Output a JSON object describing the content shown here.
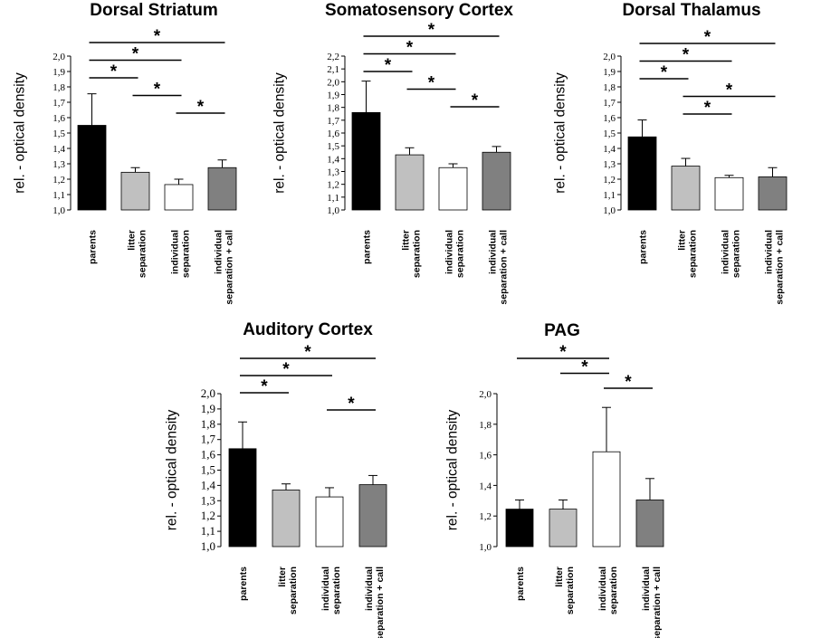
{
  "chart_data": [
    {
      "type": "bar",
      "title": "Dorsal Striatum",
      "ylabel": "rel. - optical density",
      "ylim": [
        1.0,
        2.0
      ],
      "yticks": [
        "1,0",
        "1,1",
        "1,2",
        "1,3",
        "1,4",
        "1,5",
        "1,6",
        "1,7",
        "1,8",
        "1,9",
        "2,0"
      ],
      "categories": [
        [
          "parents"
        ],
        [
          "litter",
          "separation"
        ],
        [
          "individual",
          "separation"
        ],
        [
          "individual",
          "separation + call"
        ]
      ],
      "values": [
        1.55,
        1.245,
        1.165,
        1.275
      ],
      "errors": [
        0.205,
        0.03,
        0.035,
        0.05
      ],
      "colors": [
        "#000000",
        "#c0c0c0",
        "#ffffff",
        "#808080"
      ],
      "significance": [
        {
          "from": 0,
          "to": 3,
          "label": "*"
        },
        {
          "from": 0,
          "to": 2,
          "label": "*"
        },
        {
          "from": 0,
          "to": 1,
          "label": "*"
        },
        {
          "from": 1,
          "to": 2,
          "label": "*"
        },
        {
          "from": 2,
          "to": 3,
          "label": "*"
        }
      ]
    },
    {
      "type": "bar",
      "title": "Somatosensory Cortex",
      "ylabel": "rel. - optical density",
      "ylim": [
        1.0,
        2.2
      ],
      "yticks": [
        "1,0",
        "1,1",
        "1,2",
        "1,3",
        "1,4",
        "1,5",
        "1,6",
        "1,7",
        "1,8",
        "1,9",
        "2,0",
        "2,1",
        "2,2"
      ],
      "categories": [
        [
          "parents"
        ],
        [
          "litter",
          "separation"
        ],
        [
          "individual",
          "separation"
        ],
        [
          "individual",
          "separation + call"
        ]
      ],
      "values": [
        1.76,
        1.43,
        1.33,
        1.45
      ],
      "errors": [
        0.245,
        0.055,
        0.03,
        0.045
      ],
      "colors": [
        "#000000",
        "#c0c0c0",
        "#ffffff",
        "#808080"
      ],
      "significance": [
        {
          "from": 0,
          "to": 3,
          "label": "*"
        },
        {
          "from": 0,
          "to": 2,
          "label": "*"
        },
        {
          "from": 0,
          "to": 1,
          "label": "*"
        },
        {
          "from": 1,
          "to": 2,
          "label": "*"
        },
        {
          "from": 2,
          "to": 3,
          "label": "*"
        }
      ]
    },
    {
      "type": "bar",
      "title": "Dorsal Thalamus",
      "ylabel": "rel. - optical density",
      "ylim": [
        1.0,
        2.0
      ],
      "yticks": [
        "1,0",
        "1,1",
        "1,2",
        "1,3",
        "1,4",
        "1,5",
        "1,6",
        "1,7",
        "1,8",
        "1,9",
        "2,0"
      ],
      "categories": [
        [
          "parents"
        ],
        [
          "litter",
          "separation"
        ],
        [
          "individual",
          "separation"
        ],
        [
          "individual",
          "separation + call"
        ]
      ],
      "values": [
        1.475,
        1.285,
        1.21,
        1.215
      ],
      "errors": [
        0.11,
        0.05,
        0.015,
        0.06
      ],
      "colors": [
        "#000000",
        "#c0c0c0",
        "#ffffff",
        "#808080"
      ],
      "significance": [
        {
          "from": 0,
          "to": 3,
          "label": "*"
        },
        {
          "from": 0,
          "to": 2,
          "label": "*"
        },
        {
          "from": 0,
          "to": 1,
          "label": "*"
        },
        {
          "from": 1,
          "to": 3,
          "label": "*"
        },
        {
          "from": 1,
          "to": 2,
          "label": "*"
        }
      ]
    },
    {
      "type": "bar",
      "title": "Auditory Cortex",
      "ylabel": "rel. - optical density",
      "ylim": [
        1.0,
        2.0
      ],
      "yticks": [
        "1,0",
        "1,1",
        "1,2",
        "1,3",
        "1,4",
        "1,5",
        "1,6",
        "1,7",
        "1,8",
        "1,9",
        "2,0"
      ],
      "categories": [
        [
          "parents"
        ],
        [
          "litter",
          "separation"
        ],
        [
          "individual",
          "separation"
        ],
        [
          "individual",
          "separation + call"
        ]
      ],
      "values": [
        1.64,
        1.37,
        1.325,
        1.405
      ],
      "errors": [
        0.175,
        0.04,
        0.06,
        0.06
      ],
      "colors": [
        "#000000",
        "#c0c0c0",
        "#ffffff",
        "#808080"
      ],
      "significance": [
        {
          "from": 0,
          "to": 3,
          "label": "*"
        },
        {
          "from": 0,
          "to": 2,
          "label": "*"
        },
        {
          "from": 0,
          "to": 1,
          "label": "*"
        },
        {
          "from": 2,
          "to": 3,
          "label": "*"
        }
      ]
    },
    {
      "type": "bar",
      "title": "PAG",
      "ylabel": "rel. - optical density",
      "ylim": [
        1.0,
        2.0
      ],
      "yticks": [
        "1,0",
        "1,2",
        "1,4",
        "1,6",
        "1,8",
        "2,0"
      ],
      "categories": [
        [
          "parents"
        ],
        [
          "litter",
          "separation"
        ],
        [
          "individual",
          "separation"
        ],
        [
          "individual",
          "separation + call"
        ]
      ],
      "values": [
        1.245,
        1.245,
        1.62,
        1.305
      ],
      "errors": [
        0.06,
        0.06,
        0.29,
        0.14
      ],
      "colors": [
        "#000000",
        "#c0c0c0",
        "#ffffff",
        "#808080"
      ],
      "significance": [
        {
          "from": 0,
          "to": 2,
          "label": "*"
        },
        {
          "from": 1,
          "to": 2,
          "label": "*"
        },
        {
          "from": 2,
          "to": 3,
          "label": "*"
        }
      ]
    }
  ]
}
